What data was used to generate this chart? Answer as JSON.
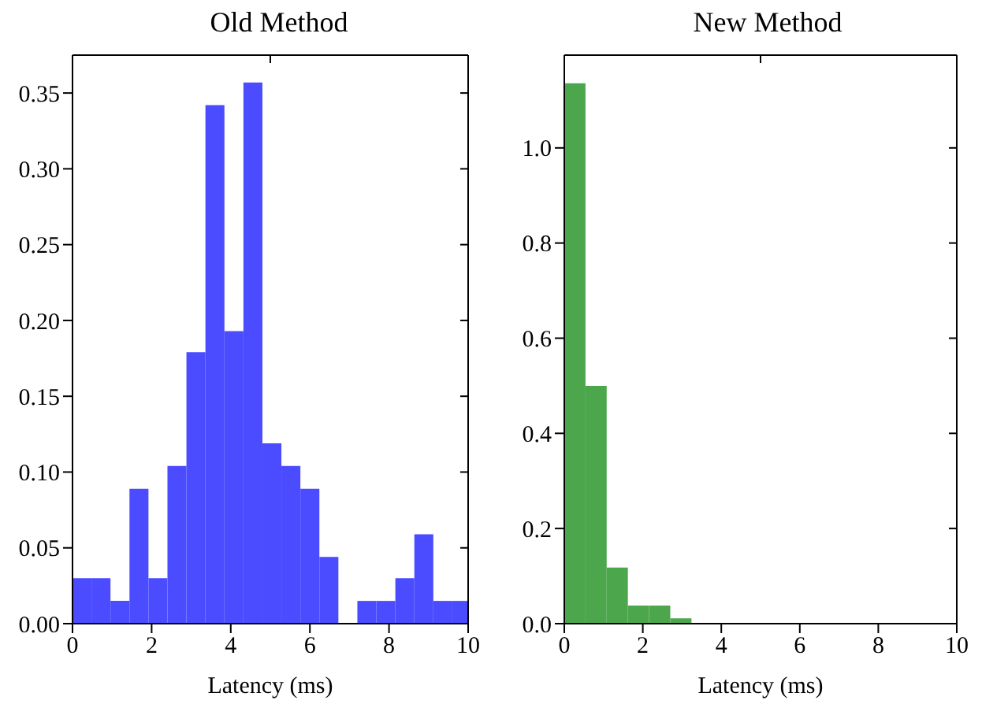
{
  "chart_data": [
    {
      "type": "histogram",
      "title": "Old Method",
      "xlabel": "Latency (ms)",
      "color": "#4b4bff",
      "bins": [
        0,
        0.48,
        0.96,
        1.44,
        1.92,
        2.4,
        2.88,
        3.36,
        3.84,
        4.32,
        4.8,
        5.28,
        5.76,
        6.24,
        6.72,
        7.2,
        7.68,
        8.16,
        8.64,
        9.12,
        9.6,
        10
      ],
      "values": [
        0.03,
        0.03,
        0.015,
        0.089,
        0.03,
        0.104,
        0.179,
        0.342,
        0.193,
        0.357,
        0.119,
        0.104,
        0.089,
        0.044,
        0,
        0.015,
        0.015,
        0.03,
        0.059,
        0.015,
        0.015
      ],
      "xlim": [
        0,
        10
      ],
      "xticks": [
        0,
        2,
        4,
        6,
        8,
        10
      ],
      "ylim": [
        0,
        0.375
      ],
      "yticks": [
        {
          "value": 0,
          "label": "0.00"
        },
        {
          "value": 0.05,
          "label": "0.05"
        },
        {
          "value": 0.1,
          "label": "0.10"
        },
        {
          "value": 0.15,
          "label": "0.15"
        },
        {
          "value": 0.2,
          "label": "0.20"
        },
        {
          "value": 0.25,
          "label": "0.25"
        },
        {
          "value": 0.3,
          "label": "0.30"
        },
        {
          "value": 0.35,
          "label": "0.35"
        }
      ],
      "grid": false
    },
    {
      "type": "histogram",
      "title": "New Method",
      "xlabel": "Latency (ms)",
      "color": "#4ca64c",
      "bins": [
        0,
        0.54,
        1.08,
        1.62,
        2.16,
        2.7,
        3.24
      ],
      "values": [
        1.136,
        0.5,
        0.118,
        0.038,
        0.038,
        0.011
      ],
      "xlim": [
        0,
        10
      ],
      "xticks": [
        0,
        2,
        4,
        6,
        8,
        10
      ],
      "ylim": [
        0,
        1.195
      ],
      "yticks": [
        {
          "value": 0,
          "label": "0.0"
        },
        {
          "value": 0.2,
          "label": "0.2"
        },
        {
          "value": 0.4,
          "label": "0.4"
        },
        {
          "value": 0.6,
          "label": "0.6"
        },
        {
          "value": 0.8,
          "label": "0.8"
        },
        {
          "value": 1,
          "label": "1.0"
        }
      ],
      "grid": false
    }
  ]
}
